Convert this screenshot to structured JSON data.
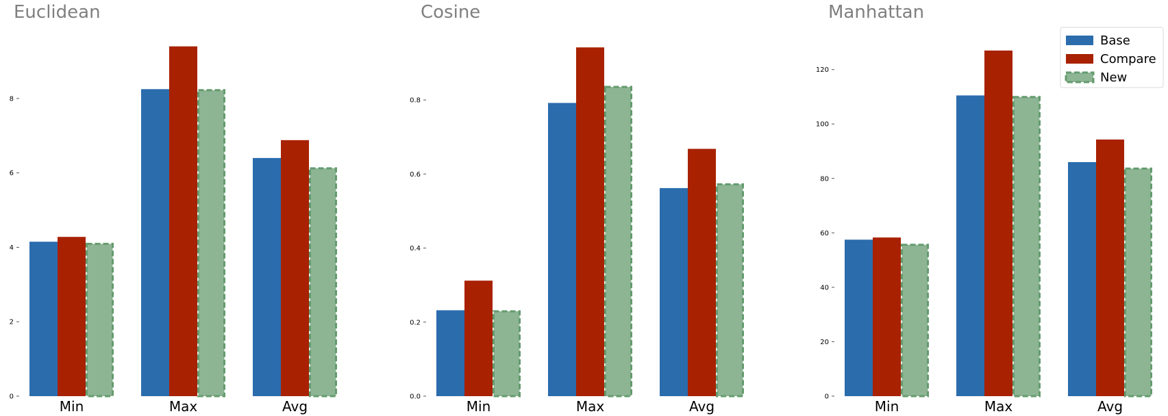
{
  "chart_data": [
    {
      "type": "bar",
      "title": "Euclidean",
      "categories": [
        "Min",
        "Max",
        "Avg"
      ],
      "series": [
        {
          "name": "Base",
          "values": [
            4.15,
            8.25,
            6.4
          ]
        },
        {
          "name": "Compare",
          "values": [
            4.28,
            9.4,
            6.88
          ]
        },
        {
          "name": "New",
          "values": [
            4.12,
            8.25,
            6.15
          ]
        }
      ],
      "yticks": [
        0,
        2,
        4,
        6,
        8
      ],
      "ylim": [
        0,
        9.8
      ],
      "grid": false,
      "legend": false
    },
    {
      "type": "bar",
      "title": "Cosine",
      "categories": [
        "Min",
        "Max",
        "Avg"
      ],
      "series": [
        {
          "name": "Base",
          "values": [
            0.232,
            0.792,
            0.562
          ]
        },
        {
          "name": "Compare",
          "values": [
            0.312,
            0.942,
            0.668
          ]
        },
        {
          "name": "New",
          "values": [
            0.232,
            0.838,
            0.575
          ]
        }
      ],
      "yticks": [
        0.0,
        0.2,
        0.4,
        0.6,
        0.8
      ],
      "ylim": [
        0,
        0.985
      ],
      "grid": false,
      "legend": false
    },
    {
      "type": "bar",
      "title": "Manhattan",
      "categories": [
        "Min",
        "Max",
        "Avg"
      ],
      "series": [
        {
          "name": "Base",
          "values": [
            57.5,
            110.5,
            86.0
          ]
        },
        {
          "name": "Compare",
          "values": [
            58.3,
            127.0,
            94.3
          ]
        },
        {
          "name": "New",
          "values": [
            56.0,
            110.3,
            84.0
          ]
        }
      ],
      "yticks": [
        0,
        20,
        40,
        60,
        80,
        100,
        120
      ],
      "ylim": [
        0,
        134
      ],
      "grid": false,
      "legend": true
    }
  ],
  "colors": {
    "Base": "#2b6cad",
    "Compare": "#a82100",
    "New": "#8db594",
    "New_edge": "#649b6e"
  },
  "legend": {
    "placement": "top-right",
    "items": [
      "Base",
      "Compare",
      "New"
    ]
  }
}
